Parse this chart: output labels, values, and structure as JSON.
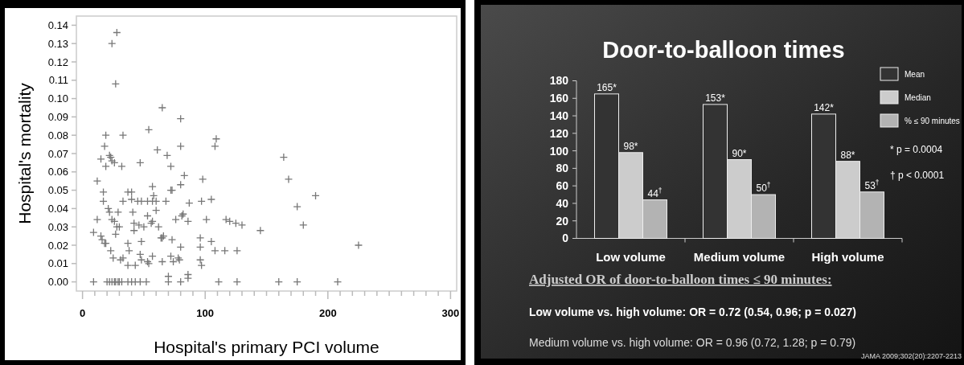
{
  "chart_data": [
    {
      "type": "scatter",
      "xlabel": "Hospital's primary PCI volume",
      "ylabel": "Hospital's mortality",
      "marker": "cross",
      "xlim": [
        -5,
        305
      ],
      "ylim": [
        -0.005,
        0.145
      ],
      "xticks": [
        0,
        {
          "value": 10,
          "label": null
        },
        {
          "value": 20,
          "label": null
        },
        {
          "value": 30,
          "label": null
        },
        {
          "value": 40,
          "label": null
        },
        {
          "value": 50,
          "label": null
        },
        {
          "value": 60,
          "label": null
        },
        {
          "value": 70,
          "label": null
        },
        {
          "value": 80,
          "label": null
        },
        {
          "value": 90,
          "label": null
        },
        100,
        {
          "value": 110,
          "label": null
        },
        {
          "value": 120,
          "label": null
        },
        {
          "value": 130,
          "label": null
        },
        {
          "value": 140,
          "label": null
        },
        {
          "value": 150,
          "label": null
        },
        {
          "value": 160,
          "label": null
        },
        {
          "value": 170,
          "label": null
        },
        {
          "value": 180,
          "label": null
        },
        {
          "value": 190,
          "label": null
        },
        200,
        {
          "value": 210,
          "label": null
        },
        {
          "value": 220,
          "label": null
        },
        {
          "value": 230,
          "label": null
        },
        {
          "value": 240,
          "label": null
        },
        {
          "value": 250,
          "label": null
        },
        {
          "value": 260,
          "label": null
        },
        {
          "value": 270,
          "label": null
        },
        {
          "value": 280,
          "label": null
        },
        {
          "value": 290,
          "label": null
        },
        300
      ],
      "yticks": [
        {
          "value": 0,
          "label": "0.00"
        },
        {
          "value": 0.01,
          "label": "0.01"
        },
        {
          "value": 0.02,
          "label": "0.02"
        },
        {
          "value": 0.03,
          "label": "0.03"
        },
        {
          "value": 0.04,
          "label": "0.04"
        },
        {
          "value": 0.05,
          "label": "0.05"
        },
        {
          "value": 0.06,
          "label": "0.06"
        },
        {
          "value": 0.07,
          "label": "0.07"
        },
        {
          "value": 0.08,
          "label": "0.08"
        },
        {
          "value": 0.09,
          "label": "0.09"
        },
        {
          "value": 0.1,
          "label": "0.10"
        },
        {
          "value": 0.11,
          "label": "0.11"
        },
        {
          "value": 0.12,
          "label": "0.12"
        },
        {
          "value": 0.13,
          "label": "0.13"
        },
        {
          "value": 0.14,
          "label": "0.14"
        }
      ],
      "series": [
        {
          "color": "#777777",
          "x": [
            9,
            20,
            22,
            24,
            26,
            27,
            29,
            30,
            32,
            37,
            40,
            43,
            47,
            52,
            70,
            80,
            111,
            126,
            160,
            175,
            208,
            70,
            86,
            86,
            28,
            24,
            27,
            65,
            80,
            54,
            19,
            33,
            18,
            80,
            108,
            109,
            61,
            22,
            69,
            23,
            24,
            26,
            19,
            32,
            47,
            72,
            15,
            168,
            164,
            190,
            175,
            180,
            98,
            83,
            12,
            57,
            80,
            72,
            73,
            17,
            37,
            40,
            58,
            17,
            33,
            40,
            45,
            48,
            53,
            57,
            60,
            68,
            97,
            105,
            87,
            21,
            22,
            29,
            41,
            60,
            82,
            81,
            12,
            24,
            26,
            42,
            46,
            53,
            56,
            57,
            76,
            86,
            101,
            117,
            120,
            125,
            130,
            145,
            9,
            15,
            16,
            18,
            19,
            27,
            28,
            30,
            42,
            50,
            62,
            64,
            65,
            66,
            73,
            48,
            37,
            38,
            80,
            96,
            96,
            105,
            108,
            116,
            126,
            225,
            23,
            25,
            31,
            33,
            37,
            43,
            47,
            48,
            53,
            54,
            57,
            65,
            72,
            74,
            78,
            79,
            96,
            97
          ],
          "values": [
            0,
            0,
            0,
            0,
            0,
            0,
            0,
            0,
            0,
            0,
            0,
            0,
            0,
            0,
            0,
            0,
            0,
            0,
            0,
            0,
            0,
            0.003,
            0.004,
            0.002,
            0.136,
            0.13,
            0.108,
            0.095,
            0.089,
            0.083,
            0.08,
            0.08,
            0.074,
            0.074,
            0.074,
            0.078,
            0.072,
            0.069,
            0.069,
            0.068,
            0.066,
            0.065,
            0.063,
            0.063,
            0.065,
            0.063,
            0.067,
            0.056,
            0.068,
            0.047,
            0.041,
            0.031,
            0.056,
            0.058,
            0.055,
            0.052,
            0.053,
            0.05,
            0.05,
            0.049,
            0.049,
            0.049,
            0.047,
            0.044,
            0.044,
            0.045,
            0.044,
            0.044,
            0.044,
            0.044,
            0.044,
            0.044,
            0.044,
            0.045,
            0.043,
            0.04,
            0.038,
            0.038,
            0.038,
            0.039,
            0.037,
            0.036,
            0.034,
            0.034,
            0.033,
            0.032,
            0.031,
            0.036,
            0.032,
            0.033,
            0.034,
            0.033,
            0.034,
            0.034,
            0.033,
            0.032,
            0.031,
            0.028,
            0.027,
            0.025,
            0.023,
            0.021,
            0.021,
            0.026,
            0.03,
            0.03,
            0.028,
            0.03,
            0.03,
            0.024,
            0.024,
            0.025,
            0.023,
            0.022,
            0.021,
            0.017,
            0.019,
            0.024,
            0.019,
            0.022,
            0.017,
            0.017,
            0.017,
            0.02,
            0.017,
            0.013,
            0.012,
            0.013,
            0.009,
            0.009,
            0.015,
            0.012,
            0.011,
            0.01,
            0.014,
            0.011,
            0.014,
            0.011,
            0.013,
            0.012,
            0.012,
            0.009
          ]
        }
      ]
    },
    {
      "type": "bar",
      "title": "Door-to-balloon times",
      "categories": [
        "Low volume",
        "Medium volume",
        "High volume"
      ],
      "ylim": [
        0,
        180
      ],
      "yticks": [
        0,
        20,
        40,
        60,
        80,
        100,
        120,
        140,
        160,
        180
      ],
      "legend": "right",
      "series": [
        {
          "name": "Mean",
          "color": "#333333",
          "values": [
            165,
            153,
            142
          ],
          "value_labels": [
            "165*",
            "153*",
            "142*"
          ]
        },
        {
          "name": "Median",
          "color": "#cccccc",
          "values": [
            98,
            90,
            88
          ],
          "value_labels": [
            "98*",
            "90*",
            "88*"
          ]
        },
        {
          "name": "% ≤ 90 minutes",
          "color": "#b3b3b3",
          "values": [
            44,
            50,
            53
          ],
          "value_labels": [
            "44$^{†}$",
            "50$^{†}$",
            "53$^{†}$"
          ]
        }
      ],
      "annotations": [
        "* p = 0.0004",
        "† p < 0.0001",
        "Adjusted OR of door-to-balloon times ≤ 90 minutes:",
        "Low volume vs. high volume: OR = 0.72 (0.54, 0.96; p = 0.027)",
        "Medium volume vs. high volume: OR = 0.96 (0.72, 1.28; p = 0.79)",
        "JAMA 2009;302(20):2207-2213"
      ]
    }
  ]
}
